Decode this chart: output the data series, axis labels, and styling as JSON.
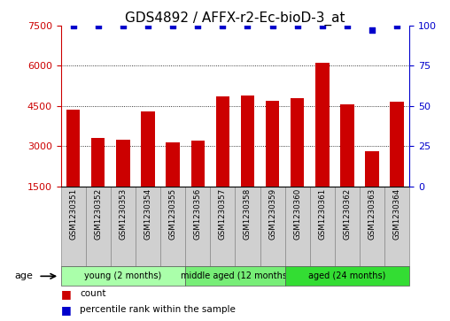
{
  "title": "GDS4892 / AFFX-r2-Ec-bioD-3_at",
  "samples": [
    "GSM1230351",
    "GSM1230352",
    "GSM1230353",
    "GSM1230354",
    "GSM1230355",
    "GSM1230356",
    "GSM1230357",
    "GSM1230358",
    "GSM1230359",
    "GSM1230360",
    "GSM1230361",
    "GSM1230362",
    "GSM1230363",
    "GSM1230364"
  ],
  "counts": [
    4350,
    3300,
    3250,
    4300,
    3150,
    3200,
    4850,
    4900,
    4700,
    4800,
    6100,
    4550,
    2800,
    4650
  ],
  "percentile_ranks": [
    100,
    100,
    100,
    100,
    100,
    100,
    100,
    100,
    100,
    100,
    100,
    100,
    97,
    100
  ],
  "bar_color": "#cc0000",
  "dot_color": "#0000cc",
  "ylim_left": [
    1500,
    7500
  ],
  "ylim_right": [
    0,
    100
  ],
  "yticks_left": [
    1500,
    3000,
    4500,
    6000,
    7500
  ],
  "yticks_right": [
    0,
    25,
    50,
    75,
    100
  ],
  "groups": [
    {
      "label": "young (2 months)",
      "start": 0,
      "end": 5,
      "color": "#aaffaa"
    },
    {
      "label": "middle aged (12 months)",
      "start": 5,
      "end": 9,
      "color": "#77ee77"
    },
    {
      "label": "aged (24 months)",
      "start": 9,
      "end": 14,
      "color": "#33dd33"
    }
  ],
  "age_label": "age",
  "legend_count_label": "count",
  "legend_percentile_label": "percentile rank within the sample",
  "title_fontsize": 11,
  "tick_fontsize": 8,
  "bar_width": 0.55,
  "background_color": "#ffffff"
}
